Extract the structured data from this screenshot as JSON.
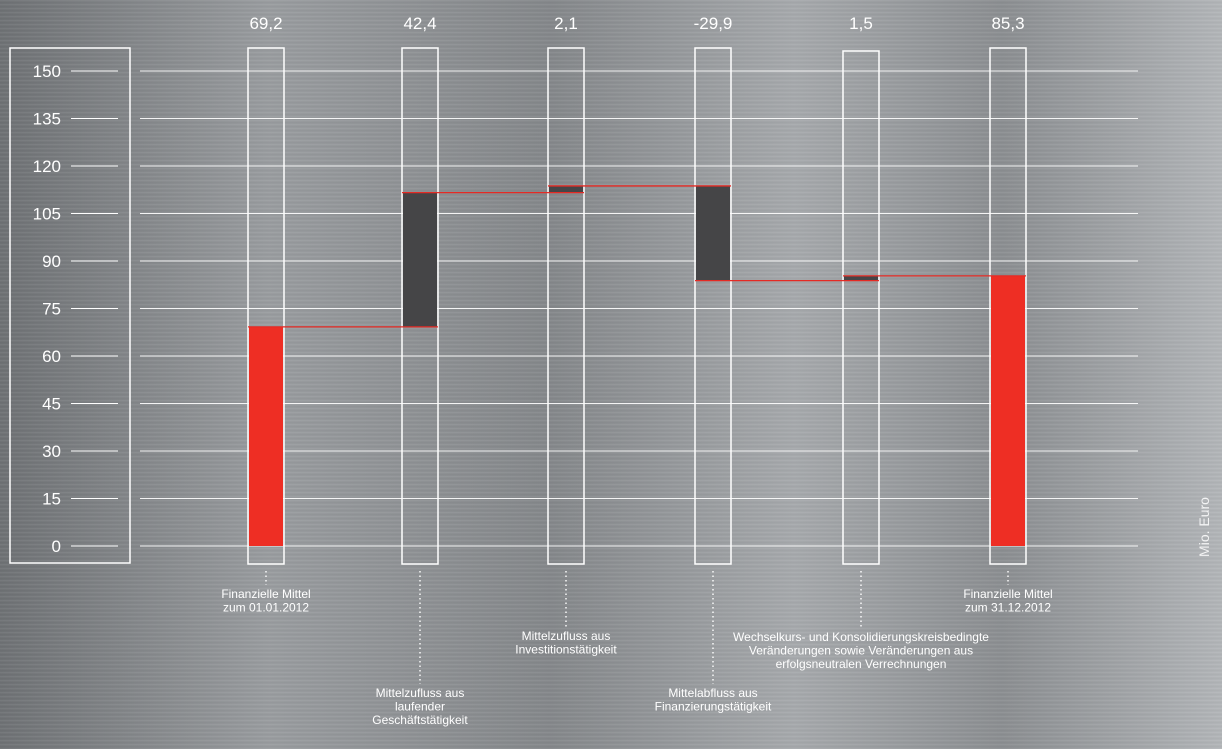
{
  "chart_data": {
    "type": "waterfall",
    "categories": [
      "Finanzielle Mittel zum 01.01.2012",
      "Mittelzufluss aus laufender Geschäftstätigkeit",
      "Mittelzufluss aus Investitionstätigkeit",
      "Mittelabfluss aus Finanzierungstätigkeit",
      "Wechselkurs- und Konsolidierungskreisbedingte Veränderungen sowie Veränderungen aus erfolgsneutralen Verrechnungen",
      "Finanzielle Mittel zum 31.12.2012"
    ],
    "values": [
      69.2,
      42.4,
      2.1,
      -29.9,
      1.5,
      85.3
    ],
    "value_labels": [
      "69,2",
      "42,4",
      "2,1",
      "-29,9",
      "1,5",
      "85,3"
    ],
    "bar_kind": [
      "total",
      "delta",
      "delta",
      "delta",
      "delta",
      "total"
    ],
    "category_label_lines": [
      [
        "Finanzielle Mittel",
        "zum 01.01.2012"
      ],
      [
        "Mittelzufluss aus",
        "laufender",
        "Geschäftstätigkeit"
      ],
      [
        "Mittelzufluss aus",
        "Investitionstätigkeit"
      ],
      [
        "Mittelabfluss aus",
        "Finanzierungstätigkeit"
      ],
      [
        "Wechselkurs- und Konsolidierungskreisbedingte",
        "Veränderungen sowie Veränderungen aus",
        "erfolgsneutralen Verrechnungen"
      ],
      [
        "Finanzielle Mittel",
        "zum 31.12.2012"
      ]
    ],
    "y_ticks": [
      0,
      15,
      30,
      45,
      60,
      75,
      90,
      105,
      120,
      135,
      150
    ],
    "ylim": [
      0,
      150
    ],
    "ylabel": "Mio. Euro",
    "xlabel": "",
    "title": "",
    "grid": true,
    "colors": {
      "total": "#ee2e24",
      "delta": "#454547",
      "connector": "#e52a24",
      "frame": "#ffffff",
      "grid": "#ffffff",
      "text": "#ffffff"
    }
  }
}
